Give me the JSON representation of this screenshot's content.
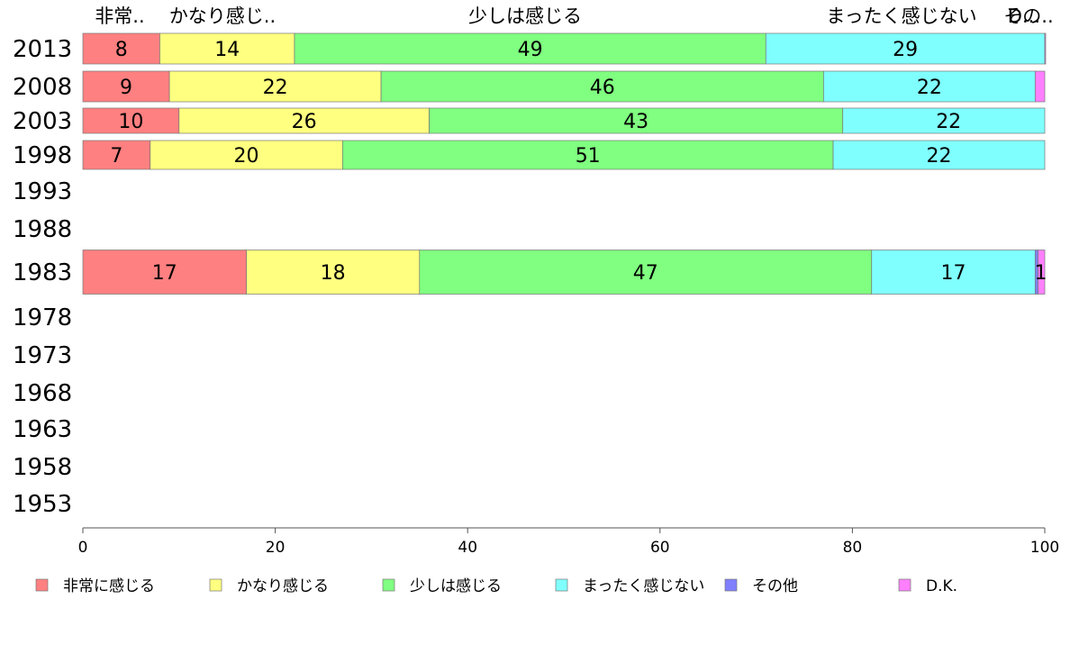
{
  "chart_data": {
    "type": "bar",
    "orientation": "horizontal",
    "stacked": true,
    "years": [
      "2013",
      "2008",
      "2003",
      "1998",
      "1993",
      "1988",
      "1983",
      "1978",
      "1973",
      "1968",
      "1963",
      "1958",
      "1953"
    ],
    "series": [
      {
        "name": "非常に感じる",
        "color": "#ff8080",
        "values": [
          8,
          9,
          10,
          7,
          null,
          null,
          17,
          null,
          null,
          null,
          null,
          null,
          null
        ]
      },
      {
        "name": "かなり感じる",
        "color": "#ffff80",
        "values": [
          14,
          22,
          26,
          20,
          null,
          null,
          18,
          null,
          null,
          null,
          null,
          null,
          null
        ]
      },
      {
        "name": "少しは感じる",
        "color": "#80ff80",
        "values": [
          49,
          46,
          43,
          51,
          null,
          null,
          47,
          null,
          null,
          null,
          null,
          null,
          null
        ]
      },
      {
        "name": "まったく感じない",
        "color": "#80ffff",
        "values": [
          29,
          22,
          22,
          22,
          null,
          null,
          17,
          null,
          null,
          null,
          null,
          null,
          null
        ]
      },
      {
        "name": "その他",
        "color": "#8080ff",
        "values": [
          0,
          0,
          0,
          0,
          null,
          null,
          0.3,
          null,
          null,
          null,
          null,
          null,
          null
        ]
      },
      {
        "name": "D.K.",
        "color": "#ff80ff",
        "values": [
          0.5,
          0.5,
          0,
          0,
          null,
          null,
          0.7,
          null,
          null,
          null,
          null,
          null,
          null
        ]
      }
    ],
    "data_labels": {
      "2013": [
        "8",
        "14",
        "49",
        "29",
        "",
        ""
      ],
      "2008": [
        "9",
        "22",
        "46",
        "22",
        "",
        ""
      ],
      "2003": [
        "10",
        "26",
        "43",
        "22",
        "",
        ""
      ],
      "1998": [
        "7",
        "20",
        "51",
        "22",
        "",
        ""
      ],
      "1983": [
        "17",
        "18",
        "47",
        "17",
        "",
        "1"
      ]
    },
    "top_labels": [
      "非常..",
      "かなり感じ..",
      "少しは感じる",
      "まったく感じない",
      "その..",
      "D..."
    ],
    "x_ticks": [
      "0",
      "20",
      "40",
      "60",
      "80",
      "100"
    ],
    "xlim": [
      0,
      100
    ],
    "legend": "bottom"
  }
}
